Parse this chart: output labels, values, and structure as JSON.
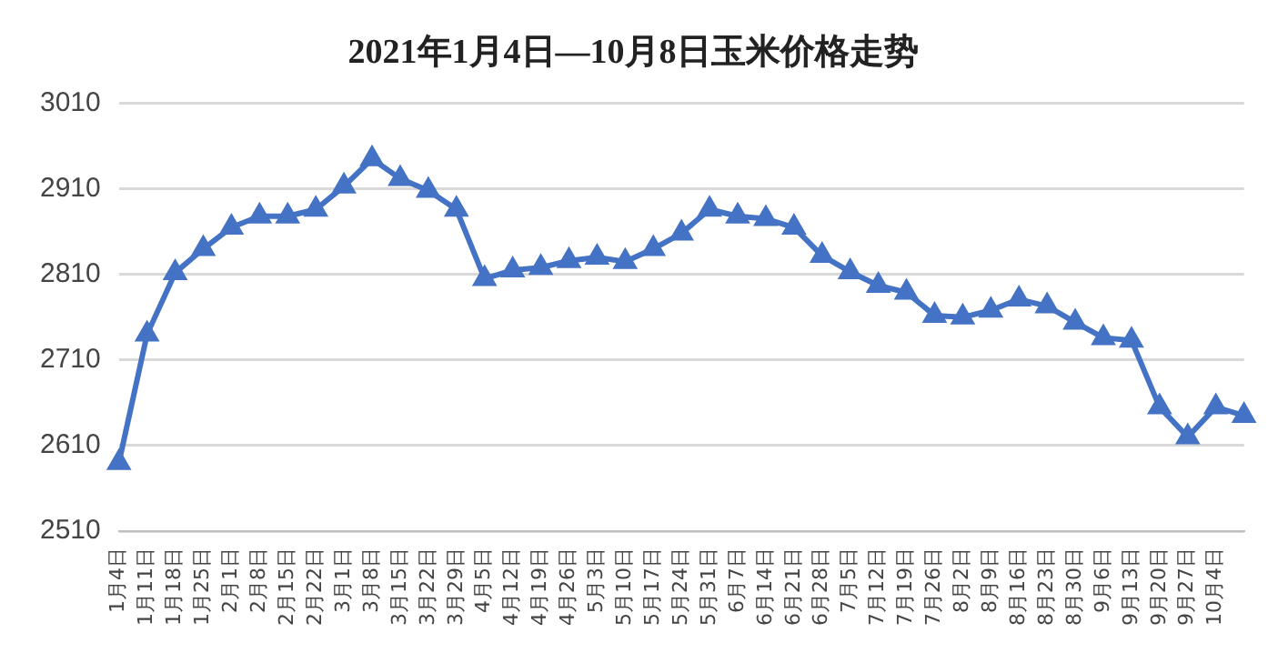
{
  "chart_data": {
    "type": "line",
    "title": "2021年1月4日—10月8日玉米价格走势",
    "categories": [
      "1月4日",
      "1月11日",
      "1月18日",
      "1月25日",
      "2月1日",
      "2月8日",
      "2月15日",
      "2月22日",
      "3月1日",
      "3月8日",
      "3月15日",
      "3月22日",
      "3月29日",
      "4月5日",
      "4月12日",
      "4月19日",
      "4月26日",
      "5月3日",
      "5月10日",
      "5月17日",
      "5月24日",
      "5月31日",
      "6月7日",
      "6月14日",
      "6月21日",
      "6月28日",
      "7月5日",
      "7月12日",
      "7月19日",
      "7月26日",
      "8月2日",
      "8月9日",
      "8月16日",
      "8月23日",
      "8月30日",
      "9月6日",
      "9月13日",
      "9月20日",
      "9月27日",
      "10月4日",
      null
    ],
    "series": [
      {
        "color": "#4472c4",
        "values": [
          2590,
          2740,
          2812,
          2840,
          2865,
          2878,
          2878,
          2886,
          2913,
          2945,
          2922,
          2908,
          2886,
          2805,
          2815,
          2818,
          2826,
          2830,
          2825,
          2840,
          2858,
          2886,
          2878,
          2875,
          2865,
          2832,
          2813,
          2797,
          2789,
          2762,
          2760,
          2768,
          2781,
          2773,
          2754,
          2736,
          2733,
          2655,
          2620,
          2655,
          2645
        ]
      }
    ],
    "ylim": [
      2510,
      3010
    ],
    "yticks": [
      2510,
      2610,
      2710,
      2810,
      2910,
      3010
    ],
    "grid": "y",
    "legend": false,
    "marker": "triangle",
    "line_style": "solid"
  }
}
